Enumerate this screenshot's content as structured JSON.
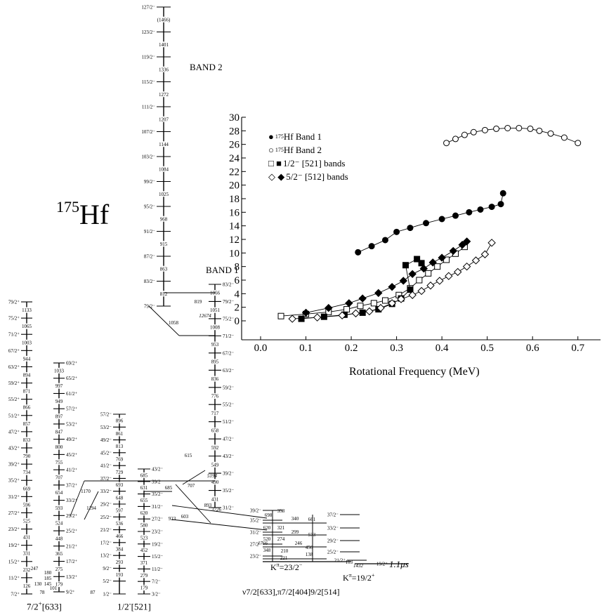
{
  "nucleus": {
    "mass": "175",
    "symbol": "Hf"
  },
  "band_titles": {
    "band1": "BAND 1",
    "band2": "BAND 2"
  },
  "band_feet": {
    "left": {
      "main": "7/2",
      "sup": "+",
      "rest": "[633]"
    },
    "mid": {
      "main": "1/2",
      "sup": "-",
      "rest": "[521]"
    }
  },
  "config_label": "ν7/2[633],π7/2[404]9/2[514]",
  "k_labels": {
    "k23": {
      "pre": "K",
      "sup": "π",
      "post": "=23/2",
      "sup2": "−"
    },
    "k19": {
      "pre": "K",
      "sup": "π",
      "post": "=19/2",
      "sup2": "+"
    }
  },
  "isomer_time": "1.1μs",
  "band2_levels": [
    "127/2⁻",
    "123/2⁻",
    "119/2⁻",
    "115/2⁻",
    "111/2⁻",
    "107/2⁻",
    "103/2⁻",
    "99/2⁻",
    "95/2⁻",
    "91/2⁻",
    "87/2⁻",
    "83/2⁻",
    "79/2⁻"
  ],
  "band2_gammas": [
    "(1466)",
    "1401",
    "1336",
    "1272",
    "1207",
    "1144",
    "1084",
    "1025",
    "968",
    "915",
    "863",
    "812"
  ],
  "band1_levels": [
    "83/2⁻",
    "79/2⁻",
    "75/2⁻",
    "71/2⁻",
    "67/2⁻",
    "63/2⁻",
    "59/2⁻",
    "55/2⁻",
    "51/2⁻",
    "47/2⁻",
    "43/2⁻",
    "39/2⁻",
    "35/2⁻",
    "31/2⁻"
  ],
  "band1_gammas": [
    "1066",
    "1051",
    "1008",
    "953",
    "895",
    "836",
    "776",
    "717",
    "658",
    "592",
    "549",
    "490",
    "431"
  ],
  "left_band_levels": [
    "79/2⁺",
    "75/2⁺",
    "71/2⁺",
    "67/2⁺",
    "63/2⁺",
    "59/2⁺",
    "55/2⁺",
    "51/2⁺",
    "47/2⁺",
    "43/2⁺",
    "39/2⁺",
    "35/2⁺",
    "31/2⁺",
    "27/2⁺",
    "23/2⁺",
    "19/2⁺",
    "15/2⁺",
    "11/2⁺",
    "7/2⁺"
  ],
  "left_band_gammas": [
    "1133",
    "1065",
    "1003",
    "944",
    "894",
    "871",
    "866",
    "857",
    "833",
    "790",
    "734",
    "669",
    "596",
    "525",
    "431",
    "331",
    "232",
    "126"
  ],
  "left_band2_levels": [
    "69/2⁺",
    "65/2⁺",
    "61/2⁺",
    "57/2⁺",
    "53/2⁺",
    "49/2⁺",
    "45/2⁺",
    "41/2⁺",
    "37/2⁺",
    "33/2⁺",
    "29/2⁺",
    "25/2⁺",
    "21/2⁺",
    "17/2⁺",
    "13/2⁺",
    "9/2⁺"
  ],
  "left_band2_gammas": [
    "1033",
    "997",
    "949",
    "897",
    "847",
    "800",
    "755",
    "707",
    "654",
    "593",
    "524",
    "448",
    "365",
    "275",
    "179"
  ],
  "mid_band_levels": [
    "57/2⁻",
    "53/2⁻",
    "49/2⁻",
    "45/2⁻",
    "41/2⁻",
    "37/2⁻",
    "33/2⁻",
    "29/2⁻",
    "25/2⁻",
    "21/2⁻",
    "17/2⁻",
    "13/2⁻",
    "9/2⁻",
    "5/2⁻",
    "1/2⁻"
  ],
  "mid_band_gammas": [
    "896",
    "861",
    "813",
    "769",
    "729",
    "693",
    "648",
    "597",
    "536",
    "466",
    "384",
    "293",
    "193"
  ],
  "mid2_band_levels": [
    "43/2⁻",
    "39/2⁻",
    "35/2⁻",
    "31/2⁻",
    "27/2⁻",
    "23/2⁻",
    "19/2⁻",
    "15/2⁻",
    "11/2⁻",
    "7/2⁻",
    "3/2⁻"
  ],
  "mid2_band_gammas": [
    "685",
    "631",
    "655",
    "620",
    "580",
    "523",
    "452",
    "371",
    "279",
    "179"
  ],
  "isomer_levels": [
    "39/2⁻",
    "35/2⁻",
    "31/2⁻",
    "27/2⁻",
    "23/2⁻",
    "37/2⁻",
    "33/2⁻",
    "29/2⁻",
    "25/2⁻",
    "21/2⁺",
    "19/2⁺"
  ],
  "isomer_gammas": [
    "358",
    "698",
    "340",
    "661",
    "321",
    "620",
    "299",
    "573",
    "274",
    "520",
    "246",
    "456",
    "210",
    "348",
    "138",
    "221",
    "113"
  ],
  "link_gammas": [
    "819",
    "1058",
    "615",
    "707",
    "685",
    "893",
    "603",
    "923",
    "1170",
    "1194",
    "180",
    "185",
    "145",
    "130",
    "101",
    "78",
    "87",
    "247"
  ],
  "italic_energies": [
    "12674",
    "5194",
    "3726",
    "1766",
    "1432"
  ],
  "chart_data": {
    "type": "scatter",
    "title": "",
    "xlabel": "Rotational Frequency (MeV)",
    "ylabel": "",
    "xlim": [
      0.0,
      0.75
    ],
    "ylim": [
      0,
      30
    ],
    "xticks": [
      "0.0",
      "0.1",
      "0.2",
      "0.3",
      "0.4",
      "0.5",
      "0.6",
      "0.7"
    ],
    "yticks": [
      "0",
      "2",
      "4",
      "6",
      "8",
      "10",
      "12",
      "14",
      "16",
      "18",
      "20",
      "22",
      "24",
      "26",
      "28",
      "30"
    ],
    "legend_position": "top-left",
    "legend": [
      {
        "markers": "●",
        "sup": "175",
        "text": "Hf Band 1"
      },
      {
        "markers": "○",
        "sup": "175",
        "text": "Hf Band 2"
      },
      {
        "markers": "□ ■",
        "sup": "",
        "text": "1/2⁻ [521] bands"
      },
      {
        "markers": "◇ ◆",
        "sup": "",
        "text": "5/2⁻ [512] bands"
      }
    ],
    "series": [
      {
        "name": "175Hf Band 1",
        "marker": "circle-filled",
        "x": [
          0.215,
          0.245,
          0.275,
          0.3,
          0.33,
          0.365,
          0.4,
          0.43,
          0.46,
          0.485,
          0.51,
          0.53,
          0.535
        ],
        "y": [
          10.1,
          11.0,
          11.9,
          13.1,
          13.7,
          14.4,
          15.0,
          15.5,
          16.0,
          16.4,
          16.8,
          17.2,
          18.8
        ]
      },
      {
        "name": "175Hf Band 2",
        "marker": "circle-open",
        "x": [
          0.41,
          0.43,
          0.45,
          0.47,
          0.495,
          0.52,
          0.545,
          0.57,
          0.595,
          0.615,
          0.64,
          0.67,
          0.7
        ],
        "y": [
          26.2,
          26.8,
          27.4,
          27.8,
          28.1,
          28.3,
          28.4,
          28.4,
          28.3,
          28.0,
          27.6,
          27.0,
          26.2
        ]
      },
      {
        "name": "1/2- [521] open",
        "marker": "square-open",
        "x": [
          0.045,
          0.1,
          0.15,
          0.19,
          0.22,
          0.25,
          0.275,
          0.305,
          0.33,
          0.35,
          0.37,
          0.39,
          0.41,
          0.43,
          0.45
        ],
        "y": [
          0.7,
          1.0,
          1.3,
          1.7,
          2.2,
          2.6,
          3.0,
          3.8,
          4.8,
          6.0,
          7.0,
          8.0,
          9.0,
          9.9,
          10.9
        ]
      },
      {
        "name": "1/2- [521] filled",
        "marker": "square-filled",
        "x": [
          0.09,
          0.14,
          0.185,
          0.225,
          0.26,
          0.29,
          0.31,
          0.33,
          0.32,
          0.345,
          0.355
        ],
        "y": [
          0.3,
          0.6,
          0.9,
          1.2,
          1.7,
          2.5,
          3.3,
          4.6,
          8.2,
          9.1,
          8.5
        ]
      },
      {
        "name": "5/2- [512] open",
        "marker": "diamond-open",
        "x": [
          0.07,
          0.125,
          0.18,
          0.21,
          0.24,
          0.265,
          0.29,
          0.31,
          0.335,
          0.355,
          0.375,
          0.395,
          0.415,
          0.435,
          0.455,
          0.475,
          0.495,
          0.51
        ],
        "y": [
          0.3,
          0.5,
          0.8,
          1.1,
          1.4,
          1.9,
          2.6,
          3.2,
          3.8,
          4.4,
          5.2,
          5.9,
          6.6,
          7.2,
          8.0,
          8.9,
          9.8,
          11.5
        ]
      },
      {
        "name": "5/2- [512] filled",
        "marker": "diamond-filled",
        "x": [
          0.1,
          0.15,
          0.195,
          0.225,
          0.26,
          0.29,
          0.315,
          0.335,
          0.36,
          0.38,
          0.4,
          0.425,
          0.445,
          0.455
        ],
        "y": [
          1.2,
          1.9,
          2.6,
          3.3,
          4.1,
          5.0,
          5.9,
          6.9,
          7.7,
          8.6,
          9.3,
          10.3,
          11.2,
          11.7
        ]
      }
    ]
  }
}
